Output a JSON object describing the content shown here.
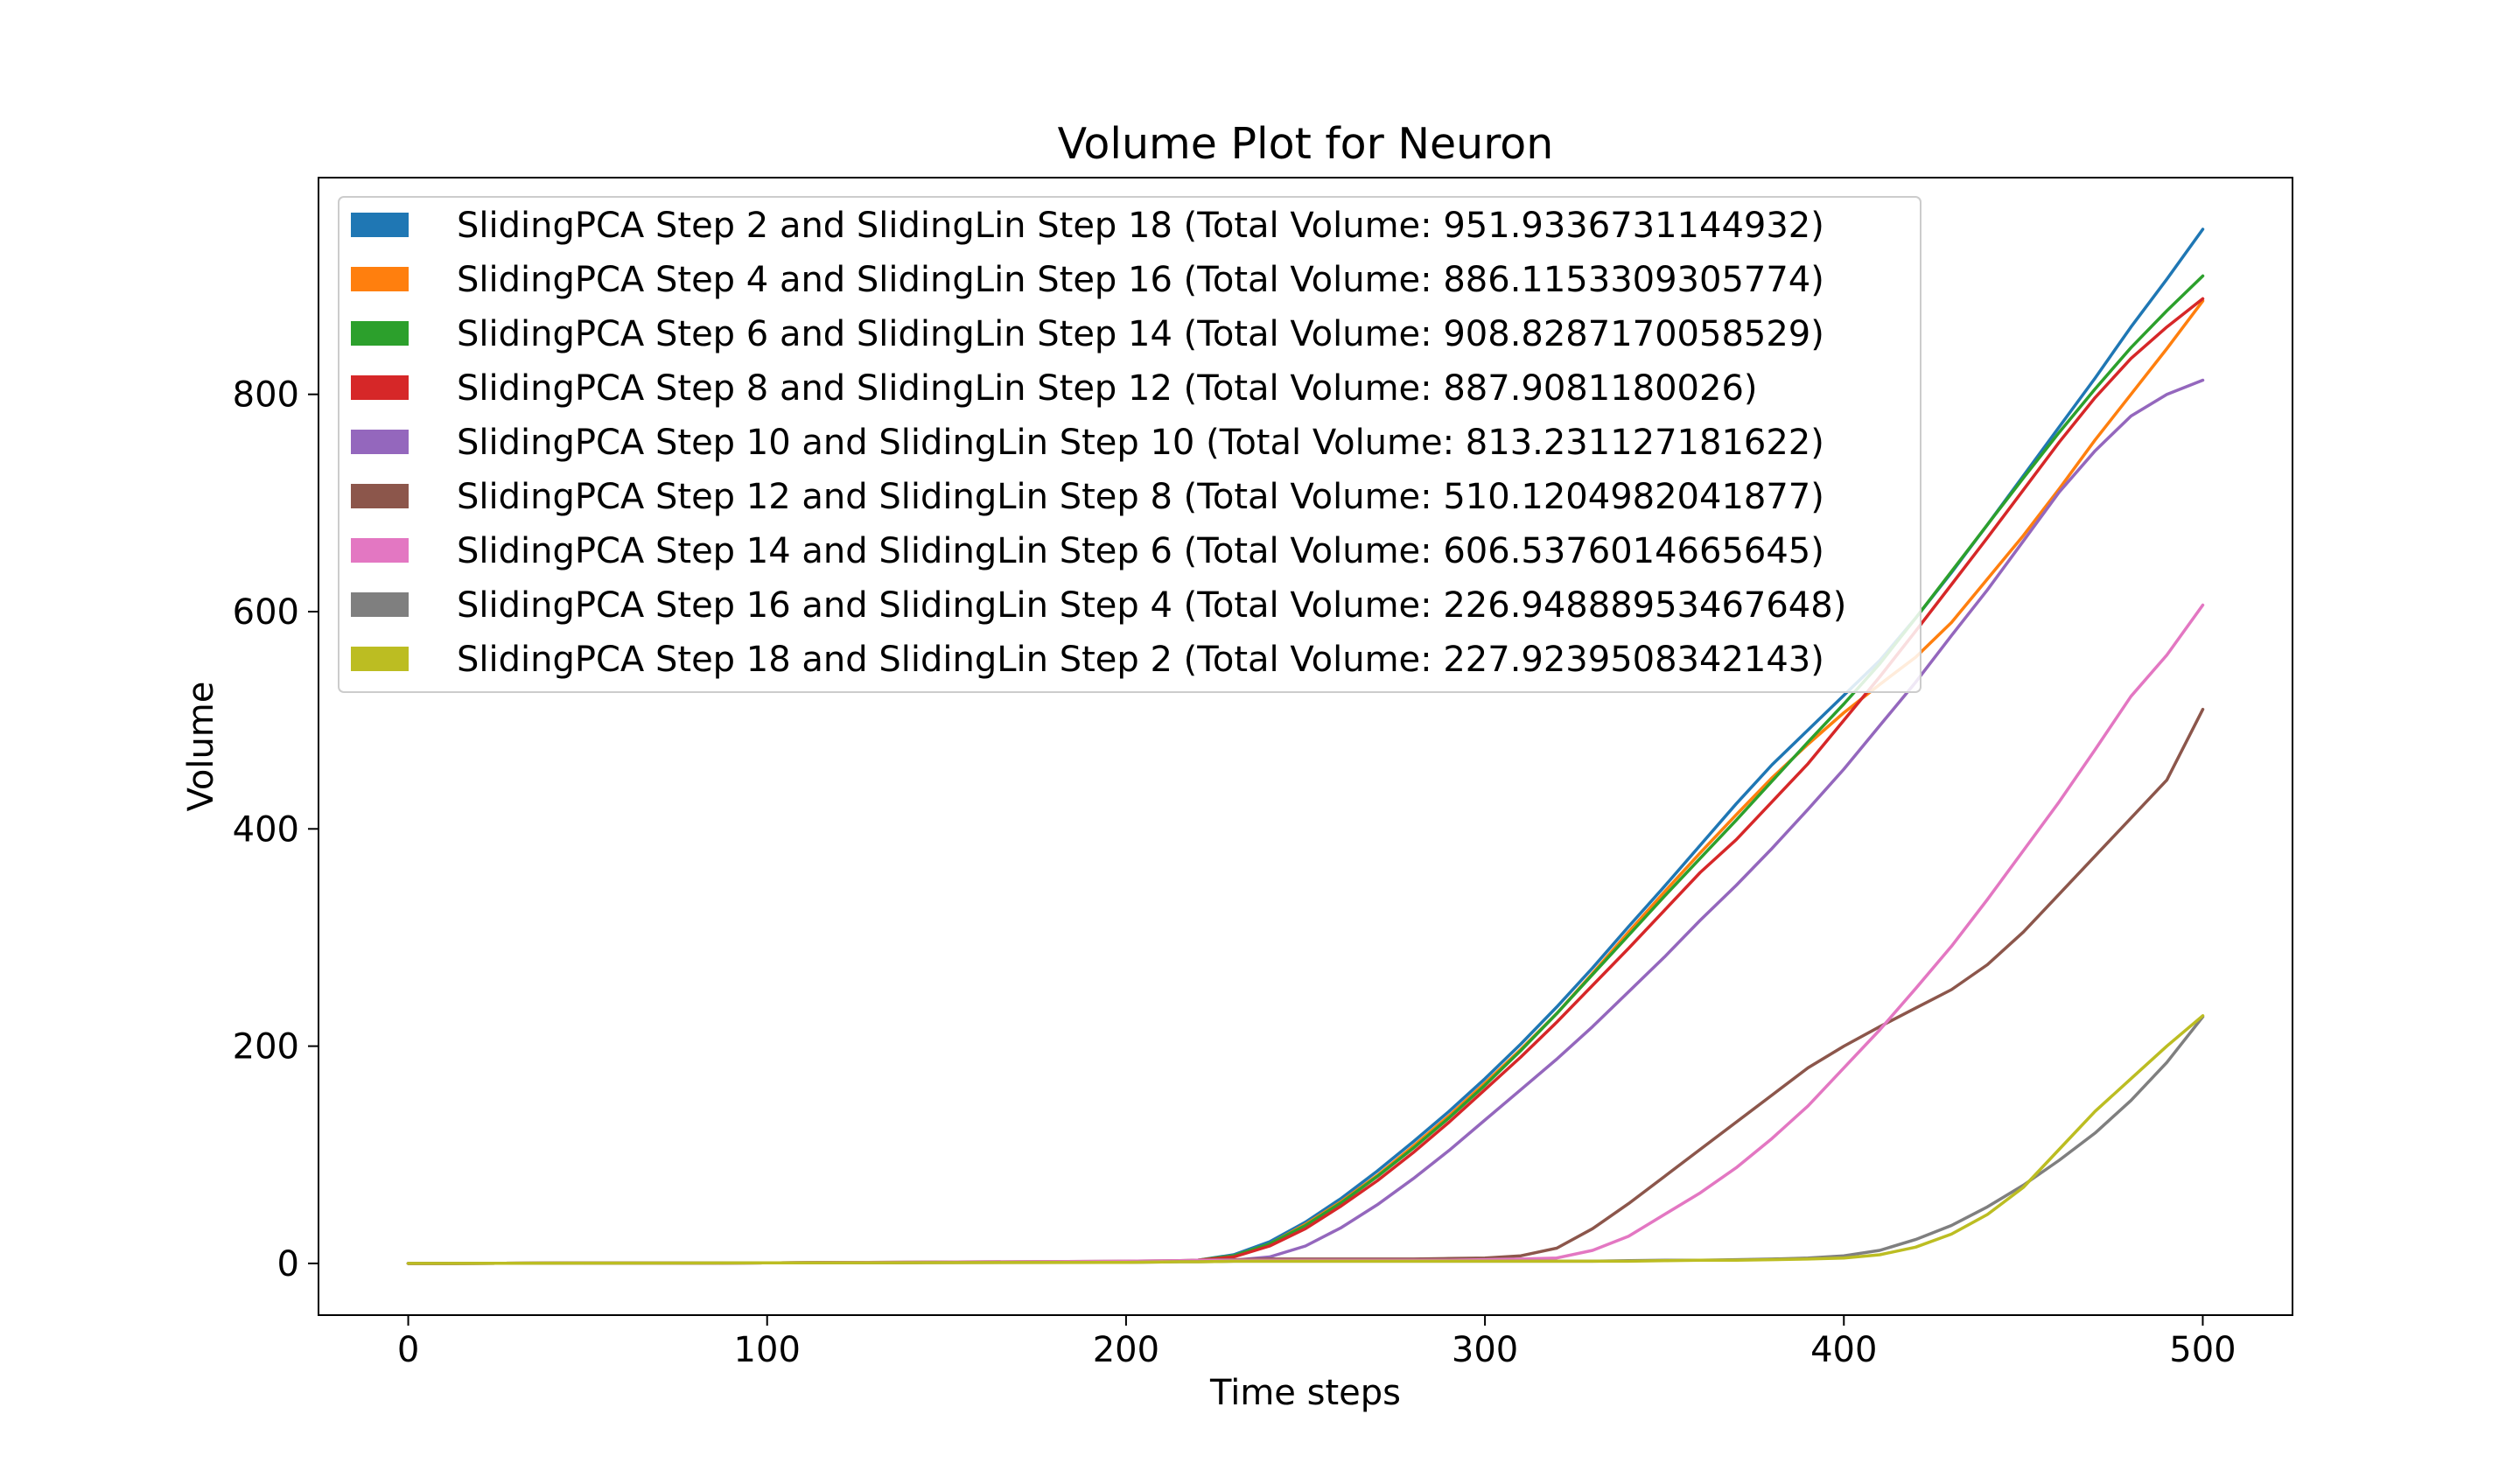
{
  "chart_data": {
    "type": "line",
    "title": "Volume Plot for Neuron",
    "xlabel": "Time steps",
    "ylabel": "Volume",
    "xlim": [
      -25,
      525
    ],
    "ylim": [
      -47.6,
      999.5
    ],
    "xticks": [
      0,
      100,
      200,
      300,
      400,
      500
    ],
    "yticks": [
      0,
      200,
      400,
      600,
      800
    ],
    "grid": false,
    "legend_position": "top-left",
    "x": [
      0,
      100,
      200,
      215,
      220,
      230,
      240,
      250,
      260,
      270,
      280,
      290,
      300,
      310,
      320,
      330,
      340,
      350,
      360,
      370,
      380,
      390,
      400,
      410,
      420,
      430,
      440,
      450,
      460,
      470,
      480,
      490,
      500
    ],
    "series": [
      {
        "name": "SlidingPCA Step 2 and SlidingLin Step 18 (Total Volume: 951.9336731144932)",
        "color": "#1f77b4",
        "values": [
          0,
          0.5,
          1.5,
          2,
          3,
          8,
          20,
          38,
          60,
          85,
          112,
          140,
          170,
          202,
          236,
          272,
          310,
          347,
          385,
          423,
          459,
          491,
          523,
          555,
          594,
          636,
          680,
          725,
          770,
          815,
          862,
          906,
          952
        ]
      },
      {
        "name": "SlidingPCA Step 4 and SlidingLin Step 16 (Total Volume: 886.1153309305774)",
        "color": "#ff7f0e",
        "values": [
          0,
          0.5,
          1.5,
          2,
          3,
          7,
          18,
          36,
          57,
          81,
          108,
          136,
          166,
          197,
          230,
          267,
          305,
          342,
          378,
          413,
          447,
          478,
          507,
          533,
          558,
          590,
          630,
          670,
          713,
          758,
          800,
          842,
          886
        ]
      },
      {
        "name": "SlidingPCA Step 6 and SlidingLin Step 14 (Total Volume: 908.8287170058529)",
        "color": "#2ca02c",
        "values": [
          0,
          0.5,
          1.5,
          2,
          3,
          7,
          18,
          35,
          56,
          80,
          106,
          134,
          164,
          196,
          230,
          266,
          302,
          338,
          373,
          408,
          444,
          480,
          515,
          552,
          594,
          637,
          680,
          723,
          765,
          805,
          843,
          877,
          909
        ]
      },
      {
        "name": "SlidingPCA Step 8 and SlidingLin Step 12 (Total Volume: 887.9081180026)",
        "color": "#d62728",
        "values": [
          0,
          0.5,
          1.5,
          2,
          3,
          6,
          16,
          32,
          53,
          76,
          102,
          130,
          160,
          190,
          222,
          256,
          290,
          325,
          360,
          390,
          425,
          460,
          500,
          540,
          582,
          625,
          668,
          712,
          756,
          797,
          833,
          862,
          888
        ]
      },
      {
        "name": "SlidingPCA Step 10 and SlidingLin Step 10 (Total Volume: 813.231127181622)",
        "color": "#9467bd",
        "values": [
          0,
          0.5,
          1.5,
          2,
          2.5,
          3,
          6,
          16,
          33,
          54,
          78,
          104,
          132,
          160,
          188,
          218,
          250,
          282,
          316,
          348,
          382,
          418,
          455,
          495,
          535,
          578,
          620,
          665,
          710,
          748,
          780,
          800,
          813
        ]
      },
      {
        "name": "SlidingPCA Step 12 and SlidingLin Step 8 (Total Volume: 510.1204982041877)",
        "color": "#8c564b",
        "values": [
          0,
          0.5,
          2,
          2.5,
          3,
          3.5,
          4,
          4,
          4,
          4,
          4,
          4.5,
          5,
          7,
          14,
          32,
          55,
          80,
          105,
          130,
          155,
          180,
          200,
          218,
          235,
          252,
          275,
          305,
          340,
          375,
          410,
          445,
          510
        ]
      },
      {
        "name": "SlidingPCA Step 14 and SlidingLin Step 6 (Total Volume: 606.5376014665645)",
        "color": "#e377c2",
        "values": [
          0,
          0.5,
          2,
          2.5,
          3,
          3,
          3,
          3,
          3,
          3,
          3,
          3,
          3.5,
          4,
          5,
          12,
          25,
          45,
          65,
          88,
          115,
          145,
          180,
          215,
          253,
          292,
          335,
          380,
          425,
          473,
          522,
          560,
          606
        ]
      },
      {
        "name": "SlidingPCA Step 16 and SlidingLin Step 4 (Total Volume: 226.94888953467648)",
        "color": "#7f7f7f",
        "values": [
          0,
          0.5,
          1,
          1.5,
          1.5,
          2,
          2,
          2,
          2,
          2,
          2,
          2,
          2,
          2,
          2,
          2,
          2.5,
          3,
          3,
          3.5,
          4,
          5,
          7,
          12,
          22,
          35,
          52,
          72,
          95,
          120,
          150,
          185,
          227
        ]
      },
      {
        "name": "SlidingPCA Step 18 and SlidingLin Step 2 (Total Volume: 227.9239508342143)",
        "color": "#bcbd22",
        "values": [
          0,
          0.5,
          1,
          1.5,
          1.5,
          2,
          2,
          2,
          2,
          2,
          2,
          2,
          2,
          2,
          2,
          2,
          2,
          2.5,
          3,
          3,
          3.5,
          4,
          5,
          8,
          15,
          27,
          45,
          70,
          105,
          140,
          170,
          200,
          228
        ]
      }
    ]
  }
}
